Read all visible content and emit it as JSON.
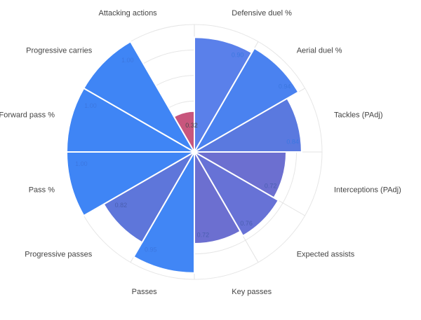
{
  "chart_data": {
    "type": "polar-area",
    "title": "",
    "r_range": [
      0,
      1
    ],
    "rings": 5,
    "colors": {
      "blue": "#3f85f5",
      "slate": "#5c78dc",
      "indigo": "#6b6dd0",
      "pink": "#c8567d",
      "label_blue": "#3c77e0",
      "label_dark": "#4a5fb0"
    },
    "categories": [
      {
        "label": "Defensive duel %",
        "value": 0.9,
        "value_text": "0.90",
        "color": "#5a80ea",
        "label_color": "#3c77e0"
      },
      {
        "label": "Aerial duel %",
        "value": 0.94,
        "value_text": "0.94",
        "color": "#4a82f0",
        "label_color": "#3c77e0"
      },
      {
        "label": "Tackles (PAdj)",
        "value": 0.84,
        "value_text": "0.84",
        "color": "#5a79df",
        "label_color": "#3c77e0"
      },
      {
        "label": "Interceptions (PAdj)",
        "value": 0.72,
        "value_text": "0.72",
        "color": "#6c6fd0",
        "label_color": "#4a5fb0"
      },
      {
        "label": "Expected assists",
        "value": 0.76,
        "value_text": "0.76",
        "color": "#6772d6",
        "label_color": "#4a5fb0"
      },
      {
        "label": "Key passes",
        "value": 0.72,
        "value_text": "0.72",
        "color": "#6c6fd0",
        "label_color": "#4a5fb0"
      },
      {
        "label": "Passes",
        "value": 0.95,
        "value_text": "0.95",
        "color": "#4186f5",
        "label_color": "#3c77e0"
      },
      {
        "label": "Progressive passes",
        "value": 0.82,
        "value_text": "0.82",
        "color": "#5e76da",
        "label_color": "#4a5fb0"
      },
      {
        "label": "Pass %",
        "value": 1.0,
        "value_text": "1.00",
        "color": "#3f85f5",
        "label_color": "#3c77e0"
      },
      {
        "label": "Forward pass %",
        "value": 1.0,
        "value_text": "1.00",
        "color": "#3f85f5",
        "label_color": "#3c77e0"
      },
      {
        "label": "Progressive carries",
        "value": 1.0,
        "value_text": "1.00",
        "color": "#3f85f5",
        "label_color": "#3c77e0"
      },
      {
        "label": "Attacking actions",
        "value": 0.32,
        "value_text": "0.32",
        "color": "#c8567d",
        "label_color": "#4a4a4a"
      }
    ]
  }
}
